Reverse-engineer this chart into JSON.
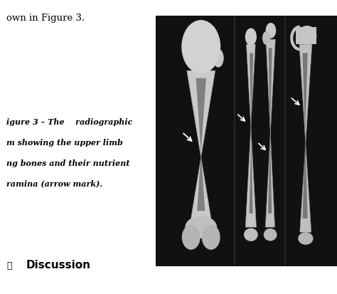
{
  "background_color": "#ffffff",
  "top_text": "own in Figure 3.",
  "caption_lines": [
    "igure 3 – The    radiographic",
    "m showing the upper limb",
    "ng bones and their nutrient",
    "ramina (arrow mark)."
  ],
  "discussion_text": "Discussion",
  "image_bg_color": "#111111"
}
